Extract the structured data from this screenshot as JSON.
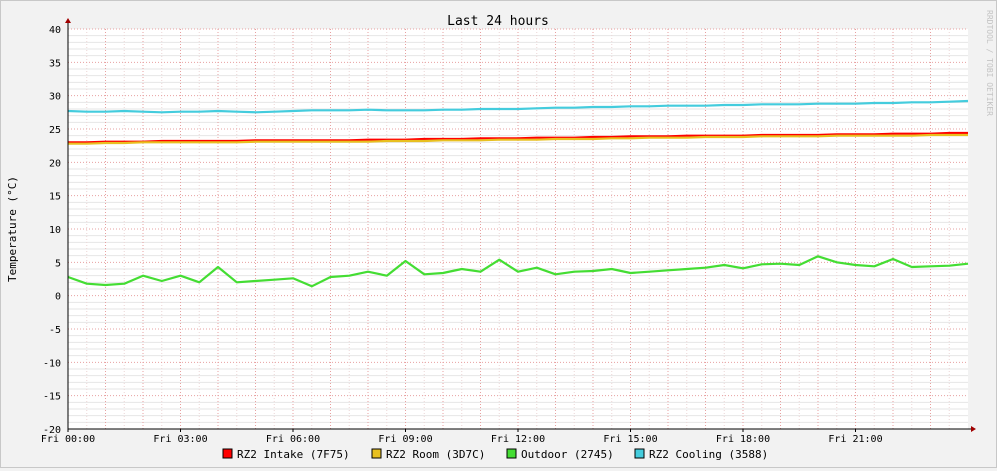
{
  "chart_data": {
    "type": "line",
    "title": "Last 24 hours",
    "ylabel": "Temperature (°C)",
    "xlabel": "",
    "watermark": "RRDTOOL / TOBI OETIKER",
    "ylim": [
      -20,
      40
    ],
    "yticks": [
      -20,
      -15,
      -10,
      -5,
      0,
      5,
      10,
      15,
      20,
      25,
      30,
      35,
      40
    ],
    "xlim_hours": [
      0,
      24
    ],
    "xtick_hours": [
      0,
      3,
      6,
      9,
      12,
      15,
      18,
      21
    ],
    "xtick_labels": [
      "Fri 00:00",
      "Fri 03:00",
      "Fri 06:00",
      "Fri 09:00",
      "Fri 12:00",
      "Fri 15:00",
      "Fri 18:00",
      "Fri 21:00"
    ],
    "grid": true,
    "legend_position": "bottom",
    "x_hours": [
      0,
      0.5,
      1,
      1.5,
      2,
      2.5,
      3,
      3.5,
      4,
      4.5,
      5,
      5.5,
      6,
      6.5,
      7,
      7.5,
      8,
      8.5,
      9,
      9.5,
      10,
      10.5,
      11,
      11.5,
      12,
      12.5,
      13,
      13.5,
      14,
      14.5,
      15,
      15.5,
      16,
      16.5,
      17,
      17.5,
      18,
      18.5,
      19,
      19.5,
      20,
      20.5,
      21,
      21.5,
      22,
      22.5,
      23,
      23.5,
      24
    ],
    "series": [
      {
        "name": "RZ2 Intake (7F75)",
        "color": "#ff0000",
        "values": [
          23.0,
          23.0,
          23.1,
          23.1,
          23.1,
          23.2,
          23.2,
          23.2,
          23.2,
          23.2,
          23.3,
          23.3,
          23.3,
          23.3,
          23.3,
          23.3,
          23.4,
          23.4,
          23.4,
          23.5,
          23.5,
          23.5,
          23.6,
          23.6,
          23.6,
          23.7,
          23.7,
          23.7,
          23.8,
          23.8,
          23.9,
          23.9,
          23.9,
          24.0,
          24.0,
          24.0,
          24.0,
          24.1,
          24.1,
          24.1,
          24.1,
          24.2,
          24.2,
          24.2,
          24.3,
          24.3,
          24.3,
          24.4,
          24.4
        ]
      },
      {
        "name": "RZ2 Room (3D7C)",
        "color": "#e8c020",
        "values": [
          22.8,
          22.8,
          22.9,
          22.9,
          23.0,
          23.0,
          23.0,
          23.0,
          23.0,
          23.0,
          23.1,
          23.1,
          23.1,
          23.1,
          23.1,
          23.1,
          23.1,
          23.2,
          23.2,
          23.2,
          23.3,
          23.3,
          23.3,
          23.4,
          23.4,
          23.4,
          23.5,
          23.5,
          23.5,
          23.6,
          23.6,
          23.7,
          23.7,
          23.7,
          23.8,
          23.8,
          23.8,
          23.9,
          23.9,
          23.9,
          23.9,
          24.0,
          24.0,
          24.0,
          24.0,
          24.0,
          24.1,
          24.1,
          24.1
        ]
      },
      {
        "name": "Outdoor (2745)",
        "color": "#44dd33",
        "values": [
          2.8,
          1.8,
          1.6,
          1.8,
          3.0,
          2.2,
          3.0,
          2.0,
          4.3,
          2.0,
          2.2,
          2.4,
          2.6,
          1.4,
          2.8,
          3.0,
          3.6,
          3.0,
          5.2,
          3.2,
          3.4,
          4.0,
          3.6,
          5.4,
          3.6,
          4.2,
          3.2,
          3.6,
          3.7,
          4.0,
          3.4,
          3.6,
          3.8,
          4.0,
          4.2,
          4.6,
          4.1,
          4.7,
          4.8,
          4.6,
          5.9,
          5.0,
          4.6,
          4.4,
          5.5,
          4.3,
          4.4,
          4.5,
          4.8
        ]
      },
      {
        "name": "RZ2 Cooling (3588)",
        "color": "#44ccdd",
        "values": [
          27.7,
          27.6,
          27.6,
          27.7,
          27.6,
          27.5,
          27.6,
          27.6,
          27.7,
          27.6,
          27.5,
          27.6,
          27.7,
          27.8,
          27.8,
          27.8,
          27.9,
          27.8,
          27.8,
          27.8,
          27.9,
          27.9,
          28.0,
          28.0,
          28.0,
          28.1,
          28.2,
          28.2,
          28.3,
          28.3,
          28.4,
          28.4,
          28.5,
          28.5,
          28.5,
          28.6,
          28.6,
          28.7,
          28.7,
          28.7,
          28.8,
          28.8,
          28.8,
          28.9,
          28.9,
          29.0,
          29.0,
          29.1,
          29.2
        ]
      }
    ]
  }
}
